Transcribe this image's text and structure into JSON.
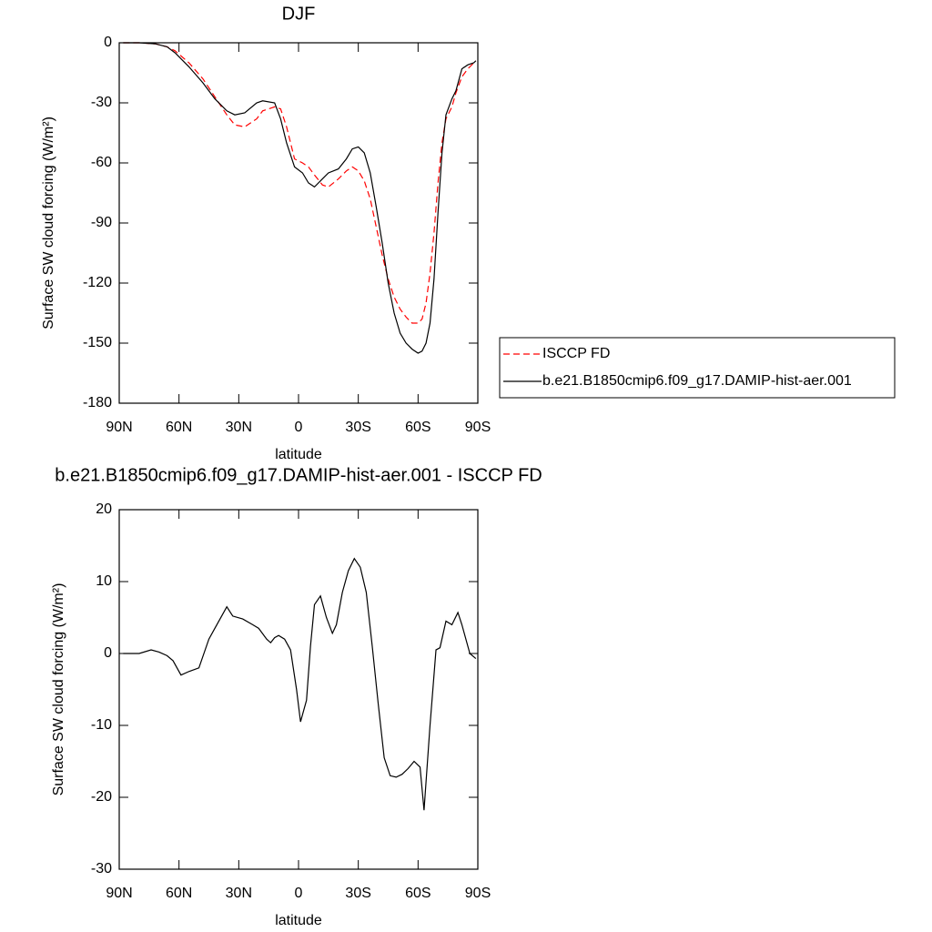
{
  "chart_data": [
    {
      "type": "line",
      "title": "DJF",
      "xlabel": "latitude",
      "ylabel": "Surface SW cloud forcing (W/m²)",
      "x": [
        88,
        80,
        72,
        66,
        62,
        55,
        48,
        42,
        36,
        32,
        27,
        21,
        18,
        12,
        9,
        6,
        2,
        -2,
        -5,
        -8,
        -12,
        -15,
        -20,
        -24,
        -27,
        -30,
        -33,
        -36,
        -39,
        -42,
        -45,
        -48,
        -51,
        -54,
        -57,
        -60,
        -62,
        -64,
        -66,
        -68,
        -70,
        -72,
        -74,
        -77,
        -79,
        -82,
        -85,
        -88,
        -89
      ],
      "series": [
        {
          "name": "ISCCP FD",
          "color": "#ff0000",
          "linestyle": "dashed",
          "values": [
            0,
            0,
            -0.5,
            -2,
            -4,
            -10,
            -18,
            -27,
            -36,
            -41,
            -42,
            -38,
            -34,
            -32,
            -33,
            -42,
            -58,
            -60,
            -62,
            -66,
            -71,
            -72,
            -68,
            -64,
            -62,
            -64,
            -69,
            -78,
            -92,
            -106,
            -118,
            -127,
            -133,
            -137,
            -140,
            -140,
            -138,
            -130,
            -115,
            -95,
            -70,
            -50,
            -38,
            -32,
            -25,
            -17,
            -13,
            -10,
            -9
          ]
        },
        {
          "name": "b.e21.B1850cmip6.f09_g17.DAMIP-hist-aer.001",
          "color": "#000000",
          "linestyle": "solid",
          "values": [
            0,
            0,
            -0.5,
            -2,
            -5,
            -12,
            -20,
            -28,
            -34,
            -36,
            -35,
            -30,
            -29,
            -30,
            -38,
            -50,
            -62,
            -65,
            -70,
            -72,
            -68,
            -65,
            -63,
            -58,
            -53,
            -52,
            -55,
            -65,
            -82,
            -100,
            -120,
            -135,
            -145,
            -150,
            -153,
            -155,
            -154,
            -150,
            -140,
            -118,
            -85,
            -55,
            -36,
            -28,
            -24,
            -13,
            -11,
            -10,
            -9
          ]
        }
      ],
      "xlim": [
        90,
        -90
      ],
      "xticks": [
        {
          "value": 90,
          "label": "90N"
        },
        {
          "value": 60,
          "label": "60N"
        },
        {
          "value": 30,
          "label": "30N"
        },
        0,
        {
          "value": -30,
          "label": "30S"
        },
        {
          "value": -60,
          "label": "60S"
        },
        {
          "value": -90,
          "label": "90S"
        }
      ],
      "ylim": [
        -180,
        0
      ],
      "yticks": [
        0,
        -30,
        -60,
        -90,
        -120,
        -150,
        -180
      ],
      "legend": "right"
    },
    {
      "type": "line",
      "title": "b.e21.B1850cmip6.f09_g17.DAMIP-hist-aer.001 - ISCCP FD",
      "xlabel": "latitude",
      "ylabel": "Surface SW cloud forcing (W/m²)",
      "x": [
        88,
        80,
        74,
        70,
        66,
        63,
        59,
        55,
        50,
        45,
        42,
        38,
        36,
        33,
        28,
        23,
        20,
        16,
        14,
        12,
        10,
        7,
        4,
        1,
        -1,
        -4,
        -6,
        -8,
        -11,
        -14,
        -17,
        -19,
        -22,
        -25,
        -28,
        -31,
        -34,
        -37,
        -40,
        -43,
        -46,
        -49,
        -52,
        -55,
        -58,
        -61,
        -63,
        -66,
        -69,
        -71,
        -74,
        -77,
        -80,
        -82,
        -86,
        -89
      ],
      "series": [
        {
          "color": "#000000",
          "linestyle": "solid",
          "values": [
            0,
            0,
            0.5,
            0.2,
            -0.3,
            -1,
            -3,
            -2.5,
            -2,
            2,
            3.5,
            5.5,
            6.5,
            5.2,
            4.8,
            4,
            3.5,
            2,
            1.5,
            2.2,
            2.5,
            2,
            0.5,
            -5,
            -9.5,
            -6.5,
            1,
            6.8,
            8,
            5,
            2.8,
            4,
            8.5,
            11.5,
            13.2,
            12,
            8.5,
            1,
            -7,
            -14.5,
            -17,
            -17.2,
            -16.8,
            -16,
            -15,
            -15.8,
            -21.8,
            -10,
            0.5,
            0.8,
            4.5,
            4,
            5.7,
            4,
            0,
            -0.7
          ]
        }
      ],
      "xlim": [
        90,
        -90
      ],
      "xticks": [
        {
          "value": 90,
          "label": "90N"
        },
        {
          "value": 60,
          "label": "60N"
        },
        {
          "value": 30,
          "label": "30N"
        },
        0,
        {
          "value": -30,
          "label": "30S"
        },
        {
          "value": -60,
          "label": "60S"
        },
        {
          "value": -90,
          "label": "90S"
        }
      ],
      "ylim": [
        -30,
        20
      ],
      "yticks": [
        20,
        10,
        0,
        -10,
        -20,
        -30
      ]
    }
  ]
}
